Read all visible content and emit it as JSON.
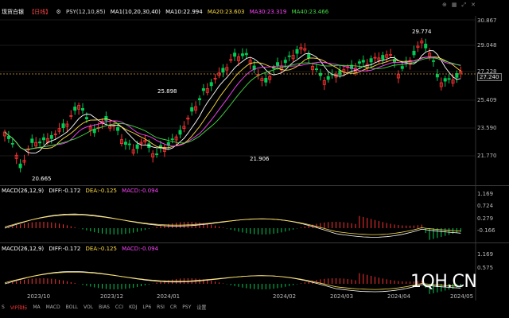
{
  "header": {
    "title": "现货白银",
    "period": "【日线】",
    "indicator": "PSY(12,10,85)",
    "ma1": "MA1(10,20,30,40)",
    "ma10": "MA10:22.994",
    "ma20": "MA20:23.603",
    "ma30": "MA30:23.319",
    "ma40": "MA40:23.466"
  },
  "price_axis": [
    "30.867",
    "29.048",
    "27.228",
    "25.409",
    "23.590",
    "21.770"
  ],
  "current_price": "27.240",
  "points": {
    "high": "29.774",
    "mid": "25.898",
    "low1": "20.665",
    "low2": "21.906"
  },
  "macd1": {
    "label": "MACD(26,12,9)",
    "diff": "DIFF:-0.172",
    "dea": "DEA:-0.125",
    "macd": "MACD:-0.094",
    "ticks": [
      "1.169",
      "0.724",
      "0.279",
      "-0.166"
    ]
  },
  "macd2": {
    "label": "MACD(26,12,9)",
    "diff": "DIFF:-0.172",
    "dea": "DEA:-0.125",
    "macd": "MACD:-0.094",
    "ticks": [
      "1.169",
      "0.575"
    ]
  },
  "x_axis": [
    "2023/10",
    "2023/12",
    "2024/01",
    "2024/02",
    "2024/03",
    "2024/04",
    "2024/05"
  ],
  "toolbar": [
    "S",
    "VIP指标",
    "MA",
    "MACD",
    "BOLL",
    "VOL",
    "BIAS",
    "CCI",
    "KDJ",
    "LP6",
    "RSI",
    "CR",
    "PSY",
    "设置"
  ],
  "watermark": "1QH.CN",
  "colors": {
    "up": "#ff3333",
    "down": "#00cc55",
    "ma10": "#ffffff",
    "ma20": "#ffdd44",
    "ma30": "#ff44ff",
    "ma40": "#44dd44"
  }
}
